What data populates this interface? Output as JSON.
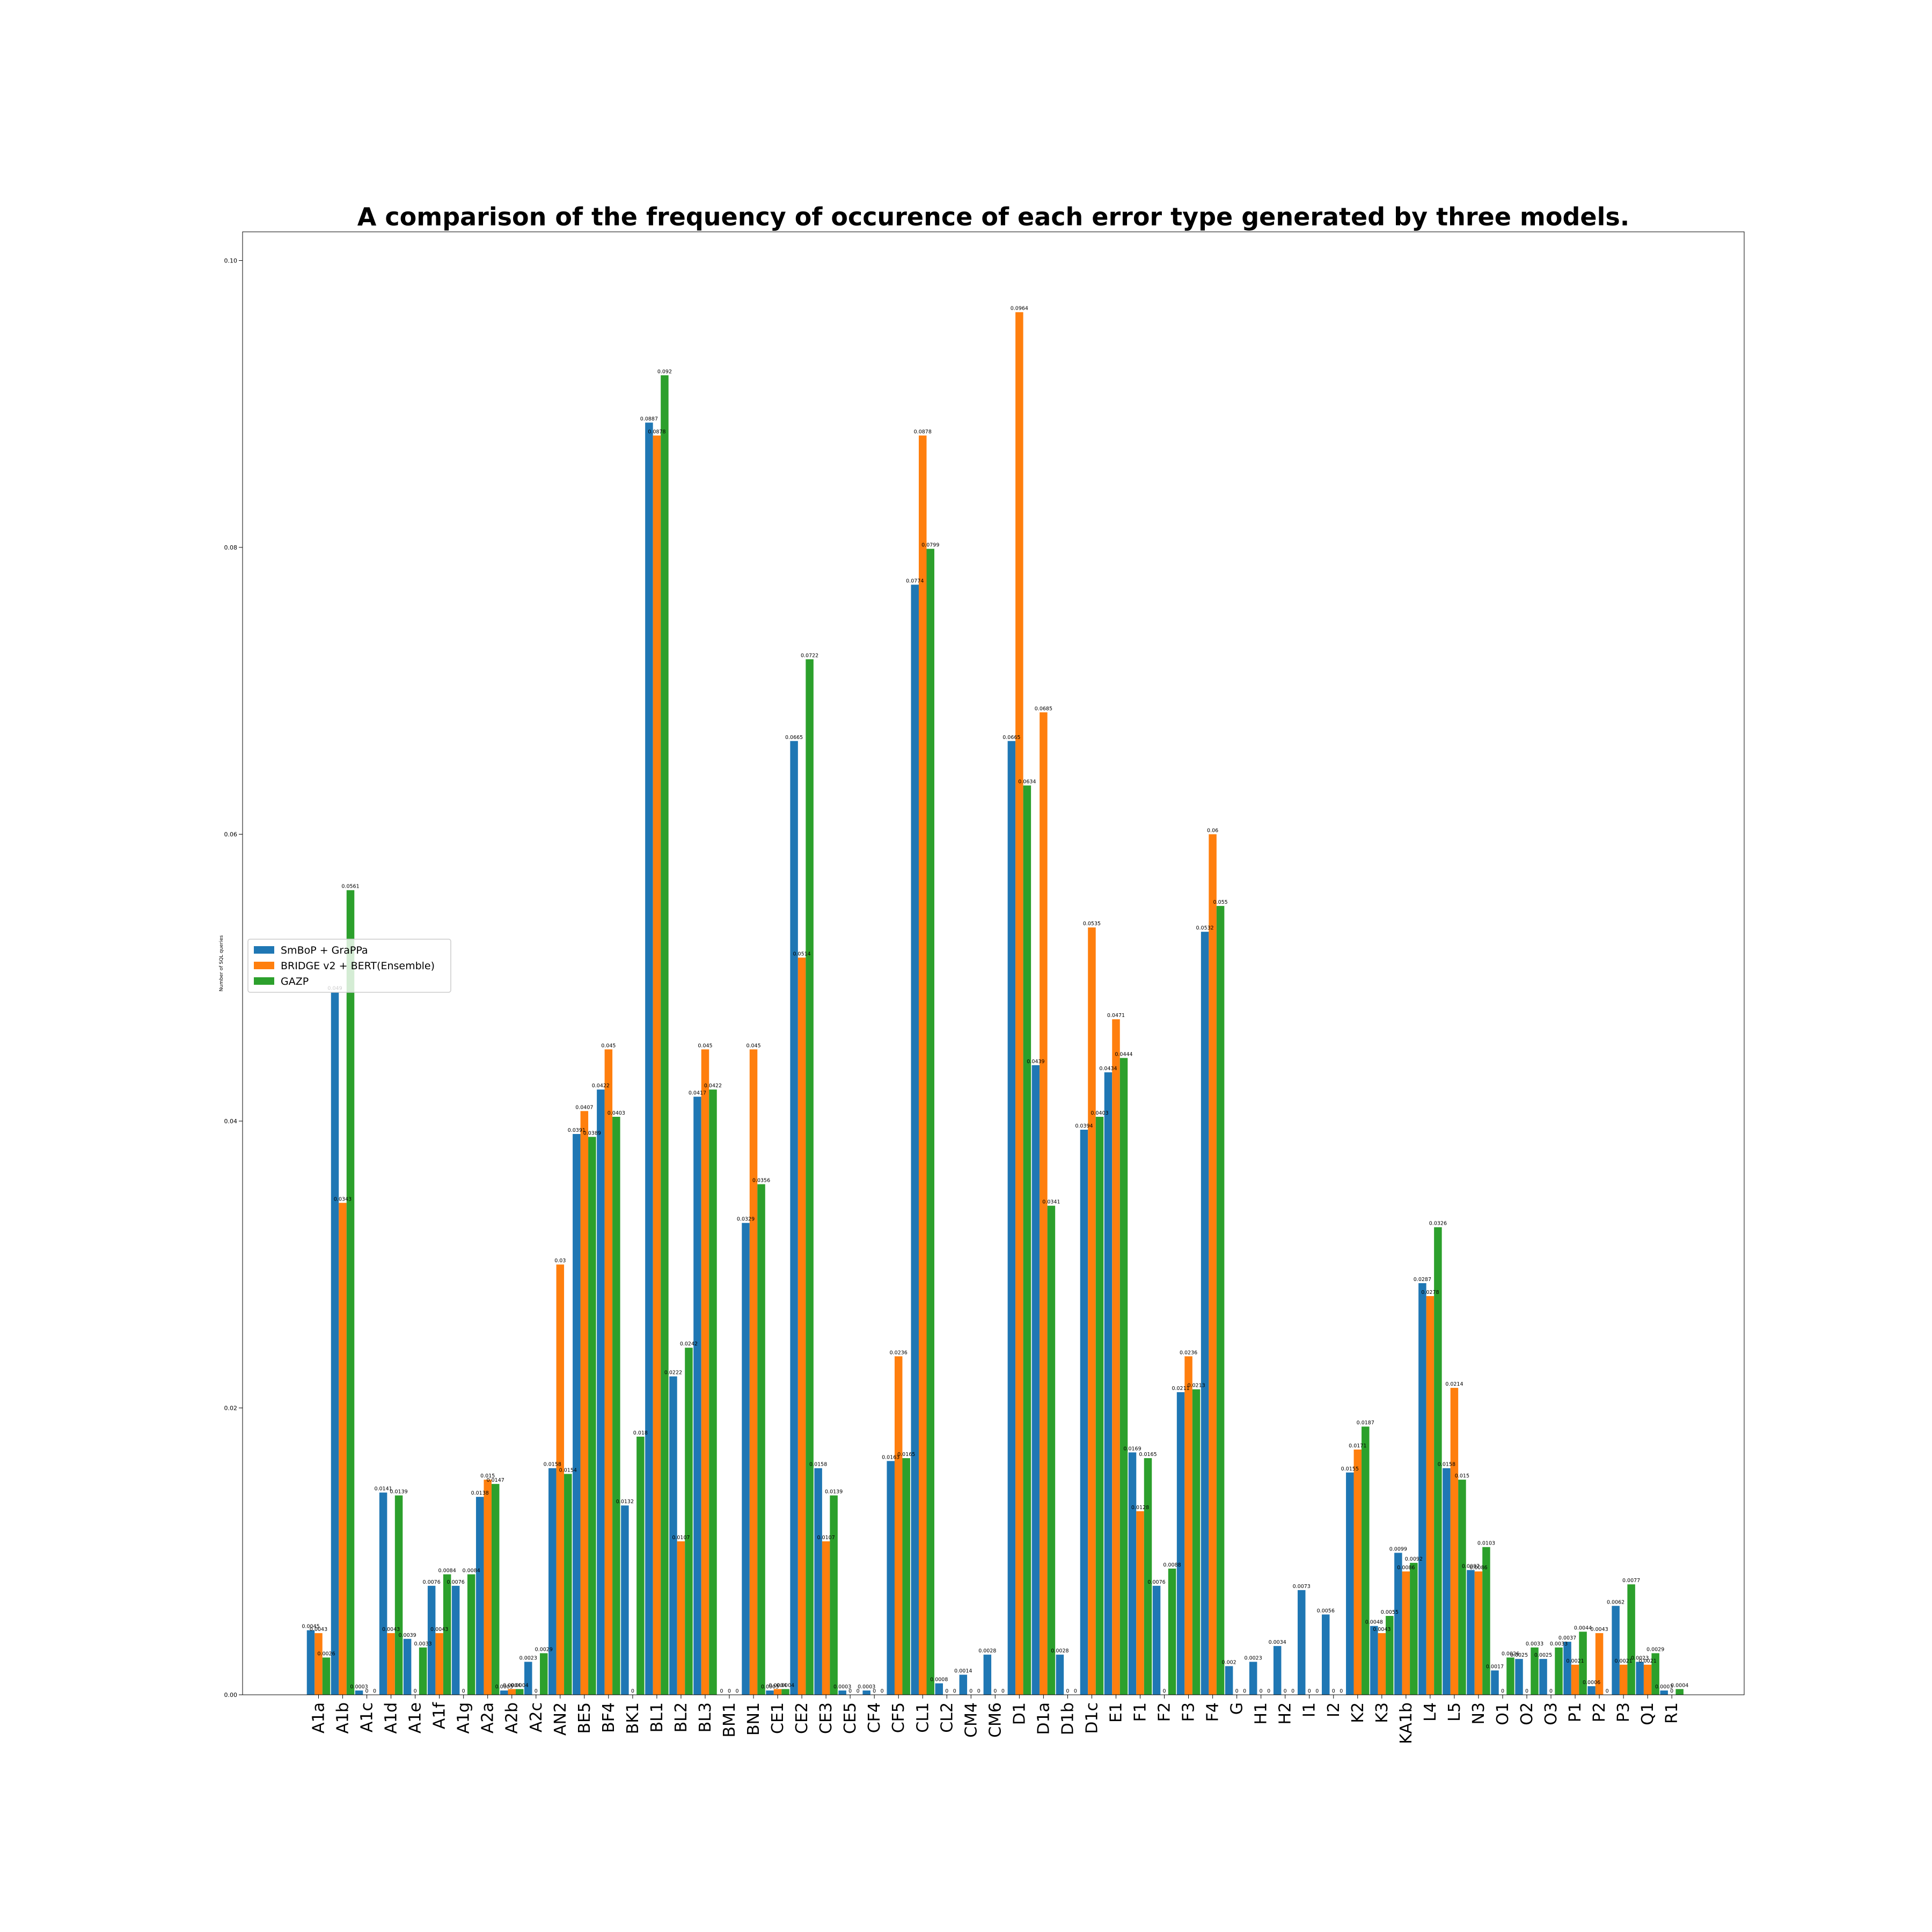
{
  "chart_data": {
    "type": "bar",
    "title": "A comparison of the frequency of occurence of each error type generated by three models.",
    "xlabel": "",
    "ylabel": "Number of SQL queries",
    "ylim": [
      0,
      0.102
    ],
    "yticks": [
      "0.00",
      "0.02",
      "0.04",
      "0.06",
      "0.08",
      "0.10"
    ],
    "legend_position": "center-left",
    "grid": false,
    "categories": [
      "A1a",
      "A1b",
      "A1c",
      "A1d",
      "A1e",
      "A1f",
      "A1g",
      "A2a",
      "A2b",
      "A2c",
      "AN2",
      "BE5",
      "BF4",
      "BK1",
      "BL1",
      "BL2",
      "BL3",
      "BM1",
      "BN1",
      "CE1",
      "CE2",
      "CE3",
      "CE5",
      "CF4",
      "CF5",
      "CL1",
      "CL2",
      "CM4",
      "CM6",
      "D1",
      "D1a",
      "D1b",
      "D1c",
      "E1",
      "F1",
      "F2",
      "F3",
      "F4",
      "G",
      "H1",
      "H2",
      "I1",
      "I2",
      "K2",
      "K3",
      "KA1b",
      "L4",
      "L5",
      "N3",
      "O1",
      "O2",
      "O3",
      "P1",
      "P2",
      "P3",
      "Q1",
      "R1"
    ],
    "series": [
      {
        "name": "SmBoP + GraPPa",
        "color": "#1f77b4",
        "values": [
          0.0045,
          0.049,
          0.0003,
          0.0141,
          0.0039,
          0.0076,
          0.0076,
          0.0138,
          0.0003,
          0.0023,
          0.0158,
          0.0391,
          0.0422,
          0.0132,
          0.0887,
          0.0222,
          0.0417,
          0,
          0.0329,
          0.0003,
          0.0665,
          0.0158,
          0.0003,
          0.0003,
          0.0163,
          0.0774,
          0.0008,
          0.0014,
          0.0028,
          0.0665,
          0.0439,
          0.0028,
          0.0394,
          0.0434,
          0.0169,
          0.0076,
          0.0211,
          0.0532,
          0.002,
          0.0023,
          0.0034,
          0.0073,
          0.0056,
          0.0155,
          0.0048,
          0.0099,
          0.0287,
          0.0158,
          0.0087,
          0.0017,
          0.0025,
          0.0025,
          0.0037,
          0.0006,
          0.0062,
          0.0023,
          0.0003
        ]
      },
      {
        "name": "BRIDGE v2 + BERT(Ensemble)",
        "color": "#ff7f0e",
        "values": [
          0.0043,
          0.0343,
          0,
          0.0043,
          0,
          0.0043,
          0,
          0.015,
          0.0004,
          0,
          0.03,
          0.0407,
          0.045,
          0,
          0.0878,
          0.0107,
          0.045,
          0,
          0.045,
          0.0004,
          0.0514,
          0.0107,
          0,
          0,
          0.0236,
          0.0878,
          0,
          0,
          0,
          0.0964,
          0.0685,
          0,
          0.0535,
          0.0471,
          0.0128,
          0,
          0.0236,
          0.06,
          0,
          0,
          0,
          0,
          0,
          0.0171,
          0.0043,
          0.0086,
          0.0278,
          0.0214,
          0.0086,
          0,
          0,
          0,
          0.0021,
          0.0043,
          0.0021,
          0.0021,
          0
        ]
      },
      {
        "name": "GAZP",
        "color": "#2ca02c",
        "values": [
          0.0026,
          0.0561,
          0,
          0.0139,
          0.0033,
          0.0084,
          0.0084,
          0.0147,
          0.0004,
          0.0029,
          0.0154,
          0.0389,
          0.0403,
          0.018,
          0.092,
          0.0242,
          0.0422,
          0,
          0.0356,
          0.0004,
          0.0722,
          0.0139,
          0,
          0,
          0.0165,
          0.0799,
          0,
          0,
          0,
          0.0634,
          0.0341,
          0,
          0.0403,
          0.0444,
          0.0165,
          0.0088,
          0.0213,
          0.055,
          0,
          0,
          0,
          0,
          0,
          0.0187,
          0.0055,
          0.0092,
          0.0326,
          0.015,
          0.0103,
          0.0026,
          0.0033,
          0.0033,
          0.0044,
          0,
          0.0077,
          0.0029,
          0.0004
        ]
      }
    ],
    "data_labels": [
      [
        "0.0045",
        "0.049",
        "0.0003",
        "0.0141",
        "0.0039",
        "0.0076",
        "0.0076",
        "0.0138",
        "0.0003",
        "0.0023",
        "0.0158",
        "0.0391",
        "0.0422",
        "0.0132",
        "0.0887",
        "0.0222",
        "0.0417",
        "0",
        "0.0329",
        "0.0003",
        "0.0665",
        "0.0158",
        "0.0003",
        "0.0003",
        "0.0163",
        "0.0774",
        "0.0008",
        "0.0014",
        "0.0028",
        "0.0665",
        "0.0439",
        "0.0028",
        "0.0394",
        "0.0434",
        "0.0169",
        "0.0076",
        "0.0211",
        "0.0532",
        "0.002",
        "0.0023",
        "0.0034",
        "0.0073",
        "0.0056",
        "0.0155",
        "0.0048",
        "0.0099",
        "0.0287",
        "0.0158",
        "0.0087",
        "0.0017",
        "0.0025",
        "0.0025",
        "0.0037",
        "0.0006",
        "0.0062",
        "0.0023",
        "0.0003"
      ],
      [
        "0.0043",
        "0.0343",
        "0",
        "0.0043",
        "0",
        "0.0043",
        "0",
        "0.015",
        "0.0004",
        "0",
        "0.03",
        "0.0407",
        "0.045",
        "0",
        "0.0878",
        "0.0107",
        "0.045",
        "0",
        "0.045",
        "0.0004",
        "0.0514",
        "0.0107",
        "0",
        "0",
        "0.0236",
        "0.0878",
        "0",
        "0",
        "0",
        "0.0964",
        "0.0685",
        "0",
        "0.0535",
        "0.0471",
        "0.0128",
        "0",
        "0.0236",
        "0.06",
        "0",
        "0",
        "0",
        "0",
        "0",
        "0.0171",
        "0.0043",
        "0.0086",
        "0.0278",
        "0.0214",
        "0.0086",
        "0",
        "0",
        "0",
        "0.0021",
        "0.0043",
        "0.0021",
        "0.0021",
        "0"
      ],
      [
        "0.0026",
        "0.0561",
        "0",
        "0.0139",
        "0.0033",
        "0.0084",
        "0.0084",
        "0.0147",
        "0.0004",
        "0.0029",
        "0.0154",
        "0.0389",
        "0.0403",
        "0.018",
        "0.092",
        "0.0242",
        "0.0422",
        "0",
        "0.0356",
        "0.0004",
        "0.0722",
        "0.0139",
        "0",
        "0",
        "0.0165",
        "0.0799",
        "0",
        "0",
        "0",
        "0.0634",
        "0.0341",
        "0",
        "0.0403",
        "0.0444",
        "0.0165",
        "0.0088",
        "0.0213",
        "0.055",
        "0",
        "0",
        "0",
        "0",
        "0",
        "0.0187",
        "0.0055",
        "0.0092",
        "0.0326",
        "0.015",
        "0.0103",
        "0.0026",
        "0.0033",
        "0.0033",
        "0.0044",
        "0",
        "0.0077",
        "0.0029",
        "0.0004"
      ]
    ]
  }
}
